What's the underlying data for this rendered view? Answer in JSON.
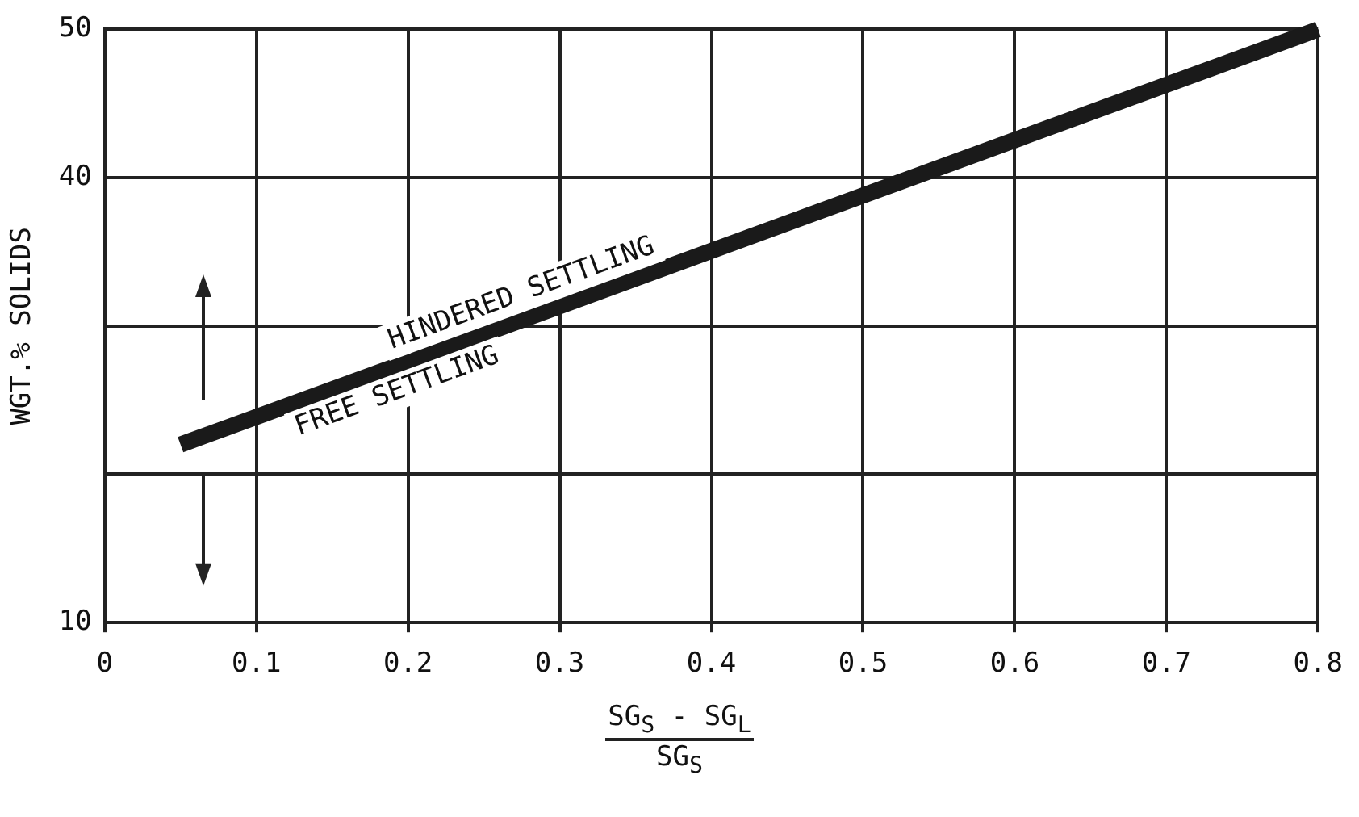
{
  "chart_data": {
    "type": "line",
    "xlabel": "SG$_{S}$ - SG$_{L}$\nSG$_{S}$",
    "ylabel": "WGT.% SOLIDS",
    "x": [
      0.05,
      0.8
    ],
    "series": [
      {
        "color": "#1a1a1a",
        "values": [
          22,
          50
        ]
      }
    ],
    "xlim": [
      0,
      0.8
    ],
    "xticks": [
      0,
      0.1,
      0.2,
      0.3,
      0.4,
      0.5,
      0.6,
      0.7,
      0.8
    ],
    "ylim": [
      10,
      50
    ],
    "yticks": [
      10,
      {
        "value": 20,
        "label": null
      },
      {
        "value": 30,
        "label": null
      },
      40,
      50
    ],
    "grid": true,
    "legend": false,
    "marker": "none",
    "line_style": "solid",
    "annotations": [
      "HINDERED SETTLING",
      "FREE SETTLING"
    ]
  }
}
